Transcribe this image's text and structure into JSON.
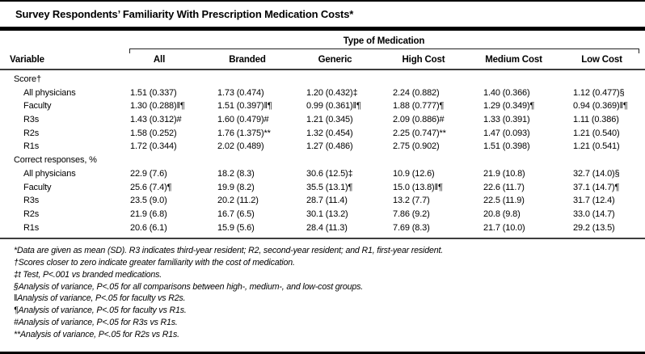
{
  "title": "Survey Respondents’ Familiarity With Prescription Medication Costs*",
  "table": {
    "group_header": "Type of Medication",
    "variable_header": "Variable",
    "columns": [
      "All",
      "Branded",
      "Generic",
      "High Cost",
      "Medium Cost",
      "Low Cost"
    ],
    "sections": [
      {
        "label": "Score†",
        "rows": [
          {
            "label": "All physicians",
            "values": [
              "1.51 (0.337)",
              "1.73 (0.474)",
              "1.20 (0.432)‡",
              "2.24 (0.882)",
              "1.40 (0.366)",
              "1.12 (0.477)§"
            ]
          },
          {
            "label": "Faculty",
            "values": [
              "1.30 (0.288)‖¶",
              "1.51 (0.397)‖¶",
              "0.99 (0.361)‖¶",
              "1.88 (0.777)¶",
              "1.29 (0.349)¶",
              "0.94 (0.369)‖¶"
            ]
          },
          {
            "label": "R3s",
            "values": [
              "1.43 (0.312)#",
              "1.60 (0.479)#",
              "1.21 (0.345)",
              "2.09 (0.886)#",
              "1.33 (0.391)",
              "1.11 (0.386)"
            ]
          },
          {
            "label": "R2s",
            "values": [
              "1.58 (0.252)",
              "1.76 (1.375)**",
              "1.32 (0.454)",
              "2.25 (0.747)**",
              "1.47 (0.093)",
              "1.21 (0.540)"
            ]
          },
          {
            "label": "R1s",
            "values": [
              "1.72 (0.344)",
              "2.02 (0.489)",
              "1.27 (0.486)",
              "2.75 (0.902)",
              "1.51 (0.398)",
              "1.21 (0.541)"
            ]
          }
        ]
      },
      {
        "label": "Correct responses, %",
        "rows": [
          {
            "label": "All physicians",
            "values": [
              "22.9 (7.6)",
              "18.2 (8.3)",
              "30.6 (12.5)‡",
              "10.9 (12.6)",
              "21.9 (10.8)",
              "32.7 (14.0)§"
            ]
          },
          {
            "label": "Faculty",
            "values": [
              "25.6 (7.4)¶",
              "19.9 (8.2)",
              "35.5 (13.1)¶",
              "15.0 (13.8)‖¶",
              "22.6 (11.7)",
              "37.1 (14.7)¶"
            ]
          },
          {
            "label": "R3s",
            "values": [
              "23.5 (9.0)",
              "20.2 (11.2)",
              "28.7 (11.4)",
              "13.2 (7.7)",
              "22.5 (11.9)",
              "31.7 (12.4)"
            ]
          },
          {
            "label": "R2s",
            "values": [
              "21.9 (6.8)",
              "16.7 (6.5)",
              "30.1 (13.2)",
              "7.86 (9.2)",
              "20.8 (9.8)",
              "33.0 (14.7)"
            ]
          },
          {
            "label": "R1s",
            "values": [
              "20.6 (6.1)",
              "15.9 (5.6)",
              "28.4 (11.3)",
              "7.69 (8.3)",
              "21.7 (10.0)",
              "29.2 (13.5)"
            ]
          }
        ]
      }
    ]
  },
  "footnotes": [
    "*Data are given as mean (SD). R3 indicates third-year resident; R2, second-year resident; and R1, first-year resident.",
    "†Scores closer to zero indicate greater familiarity with the cost of medication.",
    "‡t Test, P<.001 vs branded medications.",
    "§Analysis of variance, P<.05 for all comparisons between high-, medium-, and low-cost groups.",
    "‖Analysis of variance, P<.05 for faculty vs R2s.",
    "¶Analysis of variance, P<.05 for faculty vs R1s.",
    "#Analysis of variance, P<.05 for R3s vs R1s.",
    "**Analysis of variance, P<.05 for R2s vs R1s."
  ],
  "colors": {
    "text": "#000000",
    "background": "#ffffff",
    "rule": "#3d3d3d"
  }
}
